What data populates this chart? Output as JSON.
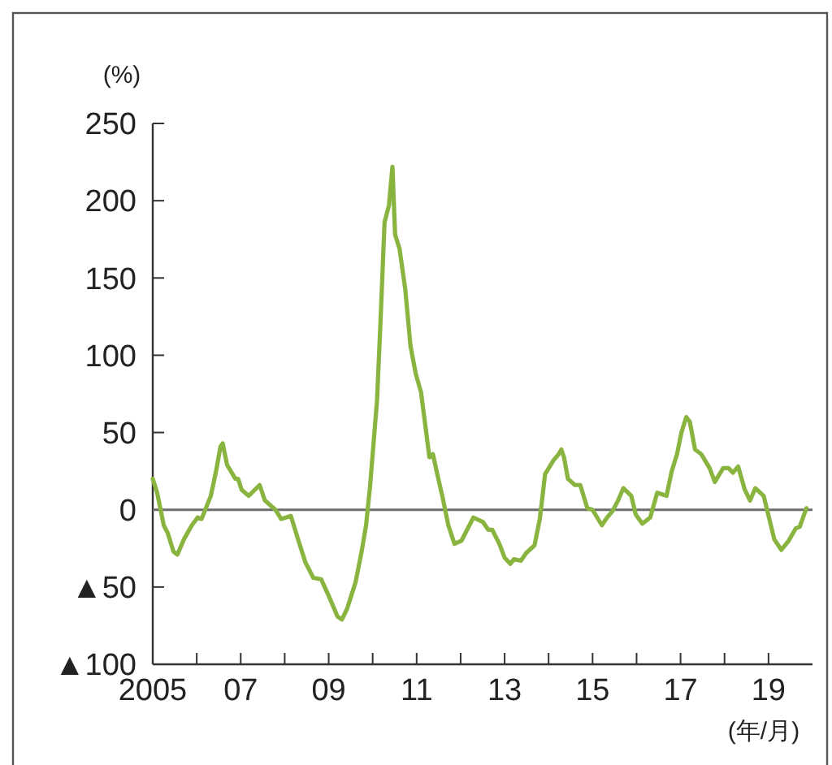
{
  "chart_data": {
    "type": "line",
    "ylabel": "(%)",
    "xlabel": "(年/月)",
    "xlim": [
      2005,
      2020
    ],
    "xticks": [
      {
        "value": 2005,
        "label": "2005"
      },
      {
        "value": 2006,
        "label": null
      },
      {
        "value": 2007,
        "label": "07"
      },
      {
        "value": 2008,
        "label": null
      },
      {
        "value": 2009,
        "label": "09"
      },
      {
        "value": 2010,
        "label": null
      },
      {
        "value": 2011,
        "label": "11"
      },
      {
        "value": 2012,
        "label": null
      },
      {
        "value": 2013,
        "label": "13"
      },
      {
        "value": 2014,
        "label": null
      },
      {
        "value": 2015,
        "label": "15"
      },
      {
        "value": 2016,
        "label": null
      },
      {
        "value": 2017,
        "label": "17"
      },
      {
        "value": 2018,
        "label": null
      },
      {
        "value": 2019,
        "label": "19"
      }
    ],
    "ylim": [
      -100,
      250
    ],
    "yticks": [
      {
        "value": -100,
        "label": "▲100"
      },
      {
        "value": -50,
        "label": "▲50"
      },
      0,
      50,
      100,
      150,
      200,
      250
    ],
    "grid": false,
    "marker": "none",
    "line_style": "solid",
    "ref_lines": [
      {
        "axis": "y",
        "value": 0,
        "color": "#6e6e6e"
      }
    ],
    "series": [
      {
        "color": "#8ab440",
        "x": [
          2005.0,
          2005.1,
          2005.25,
          2005.34,
          2005.47,
          2005.56,
          2005.71,
          2005.89,
          2006.02,
          2006.11,
          2006.32,
          2006.44,
          2006.54,
          2006.59,
          2006.69,
          2006.88,
          2006.94,
          2007.02,
          2007.18,
          2007.43,
          2007.55,
          2007.79,
          2007.92,
          2008.14,
          2008.28,
          2008.47,
          2008.65,
          2008.83,
          2009.02,
          2009.2,
          2009.3,
          2009.42,
          2009.61,
          2009.75,
          2009.85,
          2009.94,
          2010.1,
          2010.18,
          2010.27,
          2010.37,
          2010.45,
          2010.51,
          2010.61,
          2010.74,
          2010.86,
          2010.98,
          2011.1,
          2011.29,
          2011.37,
          2011.47,
          2011.59,
          2011.72,
          2011.86,
          2012.02,
          2012.29,
          2012.51,
          2012.63,
          2012.72,
          2012.88,
          2013.0,
          2013.13,
          2013.21,
          2013.37,
          2013.49,
          2013.68,
          2013.8,
          2013.92,
          2014.11,
          2014.23,
          2014.29,
          2014.35,
          2014.44,
          2014.6,
          2014.72,
          2014.88,
          2015.0,
          2015.21,
          2015.33,
          2015.45,
          2015.58,
          2015.7,
          2015.88,
          2015.98,
          2016.13,
          2016.31,
          2016.47,
          2016.68,
          2016.8,
          2016.92,
          2017.02,
          2017.13,
          2017.21,
          2017.33,
          2017.47,
          2017.66,
          2017.78,
          2017.97,
          2018.09,
          2018.19,
          2018.31,
          2018.46,
          2018.58,
          2018.7,
          2018.89,
          2019.01,
          2019.13,
          2019.29,
          2019.46,
          2019.62,
          2019.71,
          2019.86
        ],
        "values": [
          20,
          11,
          -10,
          -15,
          -27,
          -29,
          -19,
          -10,
          -5,
          -6,
          9,
          25,
          41,
          43,
          29,
          20,
          20,
          13,
          9,
          16,
          6,
          0,
          -6,
          -4,
          -17,
          -34,
          -44,
          -45,
          -57,
          -69,
          -71,
          -64,
          -47,
          -27,
          -10,
          15,
          71,
          123,
          186,
          197,
          222,
          178,
          169,
          143,
          106,
          88,
          76,
          34,
          36,
          23,
          8,
          -10,
          -22,
          -20,
          -5,
          -8,
          -13,
          -13,
          -22,
          -31,
          -35,
          -32,
          -33,
          -28,
          -23,
          -6,
          23,
          32,
          36,
          39,
          34,
          20,
          16,
          16,
          1,
          0,
          -10,
          -5,
          -1,
          6,
          14,
          9,
          -3,
          -9,
          -5,
          11,
          9,
          25,
          36,
          50,
          60,
          57,
          39,
          36,
          27,
          18,
          27,
          27,
          24,
          28,
          13,
          6,
          14,
          9,
          -5,
          -19,
          -26,
          -20,
          -12,
          -11,
          1
        ]
      }
    ]
  }
}
